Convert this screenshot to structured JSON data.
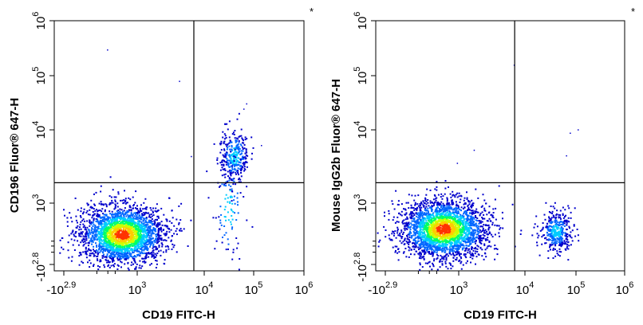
{
  "chart_data": [
    {
      "type": "scatter",
      "subtype": "flow-cytometry-density-dot-plot",
      "marker": "*",
      "xlabel": "CD19 FITC-H",
      "ylabel": "CD196  Fluor® 647-H",
      "x_scale": "log",
      "y_scale": "log",
      "x_ticks": [
        {
          "base": "-10",
          "exp": "2.9"
        },
        {
          "base": "10",
          "exp": "3"
        },
        {
          "base": "10",
          "exp": "4"
        },
        {
          "base": "10",
          "exp": "5"
        },
        {
          "base": "10",
          "exp": "6"
        }
      ],
      "y_ticks": [
        {
          "base": "-10",
          "exp": "2.8"
        },
        {
          "base": "10",
          "exp": "3"
        },
        {
          "base": "10",
          "exp": "4"
        },
        {
          "base": "10",
          "exp": "5"
        },
        {
          "base": "10",
          "exp": "6"
        }
      ],
      "quadrant_gate": {
        "x": 7000,
        "y": 1900
      },
      "populations": [
        {
          "name": "",
          "center": [
            550,
            410
          ],
          "size": "large",
          "fraction": 0.86
        },
        {
          "name": "",
          "center": [
            40000,
            4500
          ],
          "size": "small",
          "fraction": 0.1
        },
        {
          "name": "",
          "center": [
            30000,
            900
          ],
          "size": "sparse",
          "fraction": 0.04
        }
      ],
      "colormap": [
        "#0000cc",
        "#0066ff",
        "#00ccff",
        "#00ff66",
        "#ccff00",
        "#ffcc00",
        "#ff3300"
      ]
    },
    {
      "type": "scatter",
      "subtype": "flow-cytometry-density-dot-plot",
      "marker": "*",
      "xlabel": "CD19 FITC-H",
      "ylabel": "Mouse IgG2b  Fluor® 647-H",
      "x_scale": "log",
      "y_scale": "log",
      "x_ticks": [
        {
          "base": "-10",
          "exp": "2.9"
        },
        {
          "base": "10",
          "exp": "3"
        },
        {
          "base": "10",
          "exp": "4"
        },
        {
          "base": "10",
          "exp": "5"
        },
        {
          "base": "10",
          "exp": "6"
        }
      ],
      "y_ticks": [
        {
          "base": "-10",
          "exp": "2.8"
        },
        {
          "base": "10",
          "exp": "3"
        },
        {
          "base": "10",
          "exp": "4"
        },
        {
          "base": "10",
          "exp": "5"
        },
        {
          "base": "10",
          "exp": "6"
        }
      ],
      "quadrant_gate": {
        "x": 7000,
        "y": 1900
      },
      "populations": [
        {
          "name": "",
          "center": [
            550,
            480
          ],
          "size": "large",
          "fraction": 0.88
        },
        {
          "name": "",
          "center": [
            40000,
            450
          ],
          "size": "small",
          "fraction": 0.12
        }
      ],
      "colormap": [
        "#0000cc",
        "#0066ff",
        "#00ccff",
        "#00ff66",
        "#ccff00",
        "#ffcc00",
        "#ff3300"
      ]
    }
  ]
}
